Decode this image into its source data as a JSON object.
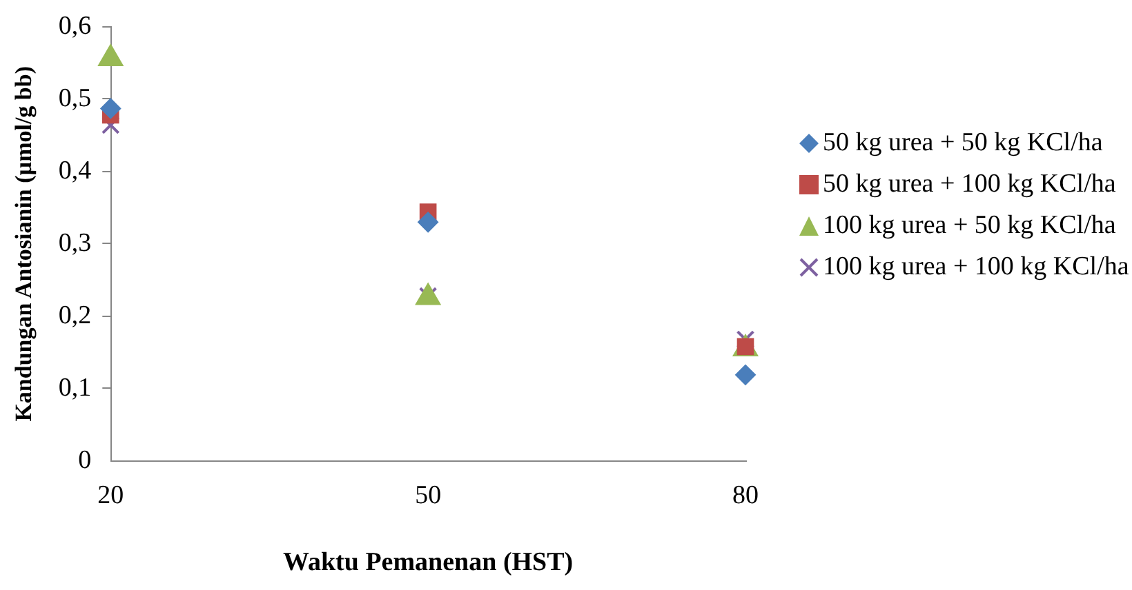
{
  "chart_data": {
    "type": "scatter",
    "xlabel": "Waktu Pemanenan (HST)",
    "ylabel": "Kandungan Antosianin (µmol/g bb)",
    "x": [
      20,
      50,
      80
    ],
    "xlim": [
      20,
      80
    ],
    "xticks": [
      20,
      50,
      80
    ],
    "ylim": [
      0,
      0.6
    ],
    "yticks": [
      0,
      {
        "value": 0.1,
        "label": "0,1"
      },
      {
        "value": 0.2,
        "label": "0,2"
      },
      {
        "value": 0.3,
        "label": "0,3"
      },
      {
        "value": 0.4,
        "label": "0,4"
      },
      {
        "value": 0.5,
        "label": "0,5"
      },
      {
        "value": 0.6,
        "label": "0,6"
      }
    ],
    "grid": false,
    "legend": "right",
    "series": [
      {
        "name": "50 kg urea + 50 kg KCl/ha",
        "color": "#4a7ebb",
        "marker": "diamond",
        "values": [
          0.487,
          0.33,
          0.119
        ]
      },
      {
        "name": "50 kg urea + 100 kg KCl/ha",
        "color": "#be4b48",
        "marker": "square",
        "values": [
          0.478,
          0.344,
          0.158
        ]
      },
      {
        "name": "100 kg urea + 50 kg KCl/ha",
        "color": "#98b954",
        "marker": "triangle",
        "values": [
          0.556,
          0.226,
          0.155
        ]
      },
      {
        "name": "100 kg urea + 100 kg KCl/ha",
        "color": "#7d60a0",
        "marker": "cross",
        "values": [
          0.464,
          0.228,
          0.168
        ]
      }
    ]
  }
}
